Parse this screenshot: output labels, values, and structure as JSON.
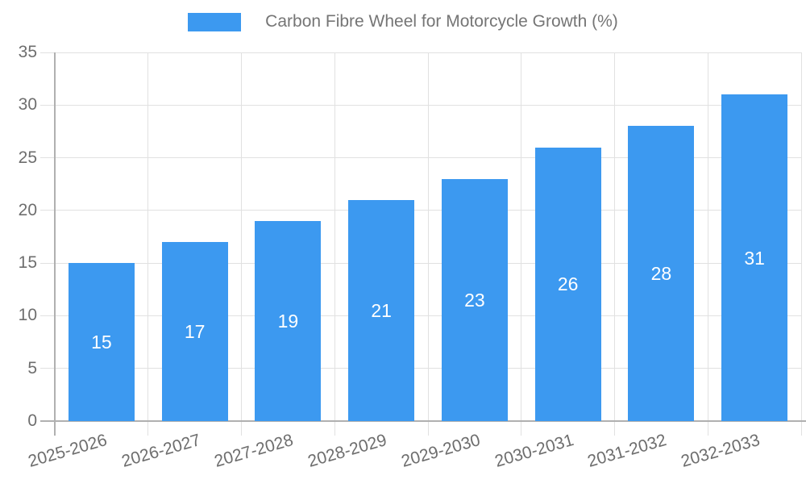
{
  "legend": {
    "label": "Carbon Fibre Wheel for Motorcycle Growth (%)"
  },
  "chart_data": {
    "type": "bar",
    "title": "Carbon Fibre Wheel for Motorcycle Growth (%)",
    "categories": [
      "2025-2026",
      "2026-2027",
      "2027-2028",
      "2028-2029",
      "2029-2030",
      "2030-2031",
      "2031-2032",
      "2032-2033"
    ],
    "values": [
      15,
      17,
      19,
      21,
      23,
      26,
      28,
      31
    ],
    "xlabel": "",
    "ylabel": "",
    "ylim": [
      0,
      35
    ],
    "yticks": [
      0,
      5,
      10,
      15,
      20,
      25,
      30,
      35
    ],
    "grid": true,
    "legend_position": "top-center",
    "value_labels": "inside-center"
  },
  "colors": {
    "background": "#FFFFFF",
    "bar": "#3C99F0",
    "grid": "#E1E1E1",
    "axis": "#B0B0B0",
    "tick_text": "#6E6E6E",
    "title_text": "#757575",
    "value_label": "#FFFFFF"
  }
}
